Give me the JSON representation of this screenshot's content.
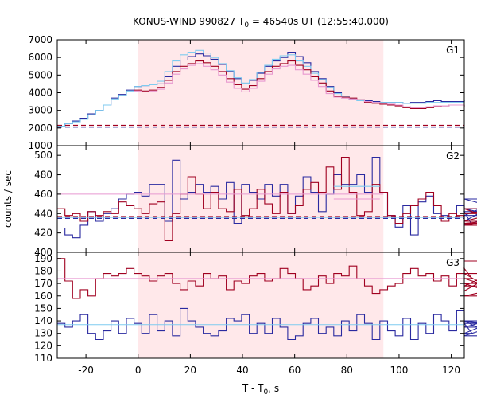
{
  "chart_data": {
    "type": "line",
    "title_main": "KONUS-WIND 990827 T",
    "title_sub": "0",
    "title_rest": " = 46540s UT (12:55:40.000)",
    "xlabel_main": "T - T",
    "xlabel_sub": "0",
    "xlabel_rest": ", s",
    "ylabel": "counts / sec",
    "xlim": [
      -31,
      125
    ],
    "x_ticks": [
      -20,
      0,
      20,
      40,
      60,
      80,
      100,
      120
    ],
    "shade_range": [
      0,
      94
    ],
    "shade_color": "#ffe8ea",
    "colors": {
      "blue": "#2a2aa0",
      "red": "#a00020",
      "lightblue": "#7ecbf0",
      "pink": "#e898d0"
    },
    "panels": [
      {
        "label": "G1",
        "ylim": [
          1000,
          7000
        ],
        "y_ticks": [
          1000,
          2000,
          3000,
          4000,
          5000,
          6000,
          7000
        ],
        "bin_start": -31,
        "bin_width": 2.944,
        "series": [
          {
            "color": "blue",
            "values": [
              2100,
              2250,
              2400,
              2550,
              2800,
              3000,
              3300,
              3700,
              3900,
              4150,
              4350,
              4400,
              4450,
              4500,
              4900,
              5500,
              5850,
              6050,
              6200,
              6100,
              5900,
              5600,
              5200,
              4800,
              4500,
              4700,
              5100,
              5500,
              5800,
              6000,
              6300,
              6050,
              5700,
              5200,
              4800,
              4350,
              4000,
              3800,
              3650,
              3600,
              3550,
              3500,
              3450,
              3450,
              3450,
              3400,
              3450,
              3450,
              3500,
              3550,
              3500,
              3500,
              3500,
              3550
            ]
          },
          {
            "color": "lightblue",
            "values": [
              2100,
              2250,
              2350,
              2500,
              2750,
              3000,
              3300,
              3650,
              3850,
              4100,
              4350,
              4400,
              4450,
              4650,
              5200,
              5800,
              6150,
              6300,
              6400,
              6250,
              6000,
              5650,
              5250,
              4850,
              4550,
              4750,
              5150,
              5550,
              5900,
              6100,
              6150,
              5800,
              5500,
              5100,
              4750,
              4300,
              3950,
              3800,
              3650,
              3550,
              3500,
              3450,
              3450,
              3450,
              3450,
              3400,
              3400,
              3400,
              3450,
              3450,
              3450,
              3450,
              3450,
              3500
            ]
          },
          {
            "color": "red",
            "values": [
              null,
              null,
              null,
              null,
              null,
              null,
              null,
              null,
              null,
              null,
              4150,
              4100,
              4150,
              4300,
              4700,
              5200,
              5500,
              5650,
              5800,
              5700,
              5500,
              5200,
              4800,
              4450,
              4200,
              4400,
              4800,
              5200,
              5500,
              5650,
              5800,
              5550,
              5300,
              4900,
              4550,
              4100,
              3800,
              3750,
              3700,
              3600,
              3450,
              3400,
              3350,
              3300,
              3250,
              3150,
              3100,
              3100,
              3150,
              3200,
              3250,
              3300,
              3300,
              3250
            ]
          },
          {
            "color": "pink",
            "values": [
              null,
              null,
              null,
              null,
              null,
              null,
              null,
              null,
              null,
              null,
              4100,
              4050,
              4100,
              4200,
              4550,
              5050,
              5350,
              5550,
              5650,
              5500,
              5300,
              5000,
              4600,
              4250,
              4050,
              4250,
              4650,
              5050,
              5350,
              5500,
              5550,
              5300,
              5050,
              4700,
              4350,
              3950,
              3750,
              3700,
              3650,
              3600,
              3500,
              3450,
              3400,
              3350,
              3300,
              3200,
              3150,
              3150,
              3200,
              3250,
              3250,
              3300,
              3300,
              3250
            ]
          }
        ],
        "dashed": [
          {
            "color": "red",
            "value": 2150
          },
          {
            "color": "blue",
            "value": 2050
          }
        ]
      },
      {
        "label": "G2",
        "ylim": [
          400,
          510
        ],
        "y_ticks": [
          400,
          420,
          440,
          460,
          480,
          500
        ],
        "bin_start": -31,
        "bin_width": 2.944,
        "series": [
          {
            "color": "blue",
            "values": [
              425,
              418,
              415,
              428,
              442,
              432,
              440,
              445,
              455,
              460,
              462,
              458,
              470,
              470,
              432,
              495,
              455,
              462,
              470,
              462,
              468,
              455,
              472,
              430,
              470,
              462,
              455,
              470,
              458,
              470,
              440,
              458,
              478,
              462,
              442,
              460,
              480,
              470,
              470,
              480,
              462,
              498,
              462,
              438,
              426,
              448,
              418,
              452,
              458,
              440,
              438,
              436,
              448,
              442,
              428,
              432,
              445,
              438,
              455,
              442
            ]
          },
          {
            "color": "red",
            "values": [
              445,
              438,
              440,
              432,
              442,
              438,
              442,
              440,
              452,
              448,
              445,
              440,
              450,
              452,
              412,
              440,
              460,
              478,
              460,
              445,
              462,
              445,
              442,
              465,
              438,
              445,
              465,
              450,
              440,
              462,
              440,
              448,
              465,
              472,
              462,
              488,
              465,
              498,
              462,
              438,
              442,
              470,
              462,
              438,
              430,
              440,
              448,
              455,
              462,
              448,
              432,
              440,
              438,
              430,
              428,
              430,
              432,
              440,
              445,
              428
            ]
          },
          {
            "color": "lightblue",
            "values": [
              null,
              null,
              null,
              null,
              null,
              null,
              null,
              null,
              null,
              null,
              null,
              null,
              null,
              null,
              null,
              null,
              null,
              null,
              null,
              null,
              null,
              null,
              null,
              null,
              null,
              null,
              null,
              null,
              null,
              null,
              null,
              null,
              null,
              null,
              null,
              null,
              468,
              468,
              468,
              468,
              468,
              468,
              null,
              null,
              null,
              null,
              null,
              null,
              null,
              null,
              null,
              null,
              null,
              null,
              null,
              null,
              null,
              null,
              null,
              null
            ]
          },
          {
            "color": "pink",
            "values": [
              null,
              null,
              null,
              null,
              null,
              null,
              null,
              null,
              null,
              null,
              null,
              null,
              null,
              null,
              null,
              null,
              null,
              null,
              null,
              null,
              null,
              null,
              null,
              null,
              null,
              null,
              null,
              null,
              null,
              null,
              null,
              null,
              null,
              null,
              null,
              null,
              455,
              455,
              455,
              455,
              455,
              455,
              null,
              null,
              null,
              null,
              null,
              null,
              null,
              null,
              null,
              null,
              null,
              null,
              null,
              null,
              null,
              null,
              null,
              null
            ]
          }
        ],
        "dashed": [
          {
            "color": "red",
            "value": 437
          },
          {
            "color": "blue",
            "value": 435
          }
        ],
        "flat": [
          {
            "color": "pink",
            "value": 460,
            "range": [
              -31,
              94
            ]
          },
          {
            "color": "lightblue",
            "value": 436,
            "range": [
              -31,
              125
            ]
          }
        ]
      },
      {
        "label": "G3",
        "ylim": [
          110,
          195
        ],
        "y_ticks": [
          110,
          120,
          130,
          140,
          150,
          160,
          170,
          180,
          190
        ],
        "bin_start": -31,
        "bin_width": 2.944,
        "series": [
          {
            "color": "red",
            "values": [
              190,
              172,
              158,
              165,
              160,
              174,
              178,
              176,
              178,
              182,
              178,
              176,
              172,
              176,
              178,
              170,
              165,
              172,
              168,
              178,
              174,
              176,
              165,
              172,
              170,
              176,
              178,
              172,
              174,
              182,
              178,
              174,
              165,
              168,
              176,
              170,
              178,
              176,
              184,
              174,
              168,
              162,
              165,
              168,
              170,
              178,
              182,
              176,
              178,
              172,
              176,
              168,
              178,
              182,
              174,
              170,
              164,
              178,
              160,
              168,
              188
            ]
          },
          {
            "color": "blue",
            "values": [
              138,
              135,
              140,
              145,
              130,
              125,
              132,
              140,
              130,
              142,
              138,
              130,
              145,
              132,
              140,
              128,
              150,
              140,
              135,
              130,
              128,
              132,
              142,
              140,
              145,
              130,
              138,
              130,
              142,
              135,
              125,
              128,
              138,
              142,
              130,
              135,
              128,
              140,
              132,
              145,
              138,
              125,
              140,
              132,
              128,
              142,
              125,
              138,
              130,
              145,
              140,
              132,
              148,
              138,
              130,
              135,
              140,
              128,
              138,
              140,
              135
            ]
          },
          {
            "color": "pink",
            "values": []
          },
          {
            "color": "lightblue",
            "values": []
          }
        ],
        "flat": [
          {
            "color": "pink",
            "value": 174,
            "range": [
              -31,
              125
            ]
          },
          {
            "color": "lightblue",
            "value": 137,
            "range": [
              -31,
              125
            ]
          }
        ]
      }
    ]
  }
}
